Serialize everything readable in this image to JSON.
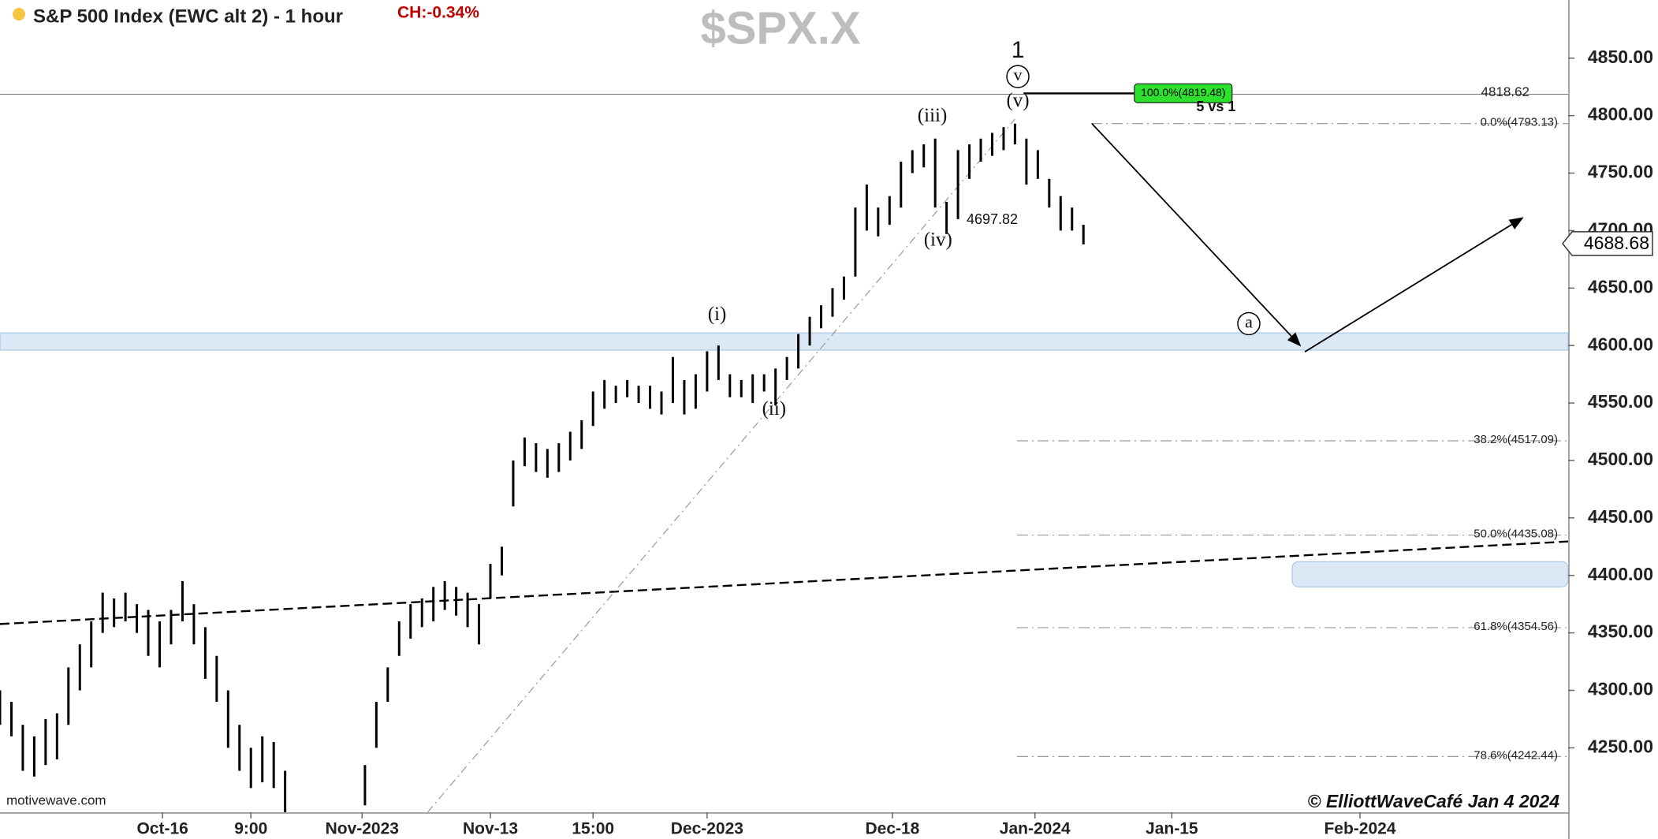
{
  "chart_data": {
    "type": "ohlc",
    "title": "S&P 500 Index (EWC alt 2) - 1 hour",
    "change": "CH:-0.34%",
    "symbol": "$SPX.X",
    "source": "motivewave.com",
    "copyright": "© ElliottWaveCafé Jan 4 2024",
    "last_price": {
      "value": 4688.68,
      "label": "4688.68"
    },
    "color": "#000000",
    "xlim": [
      0,
      550
    ],
    "ylim": [
      4194,
      4900.6
    ],
    "xticks": [
      {
        "value": 57,
        "label": "Oct-16"
      },
      {
        "value": 88,
        "label": "9:00"
      },
      {
        "value": 127,
        "label": "Nov-2023"
      },
      {
        "value": 172,
        "label": "Nov-13"
      },
      {
        "value": 208,
        "label": "15:00"
      },
      {
        "value": 248,
        "label": "Dec-2023"
      },
      {
        "value": 313,
        "label": "Dec-18"
      },
      {
        "value": 363,
        "label": "Jan-2024"
      },
      {
        "value": 411,
        "label": "Jan-15"
      },
      {
        "value": 477,
        "label": "Feb-2024"
      }
    ],
    "yticks": [
      {
        "value": 4250,
        "label": "4250.00"
      },
      {
        "value": 4300,
        "label": "4300.00"
      },
      {
        "value": 4350,
        "label": "4350.00"
      },
      {
        "value": 4400,
        "label": "4400.00"
      },
      {
        "value": 4450,
        "label": "4450.00"
      },
      {
        "value": 4500,
        "label": "4500.00"
      },
      {
        "value": 4550,
        "label": "4550.00"
      },
      {
        "value": 4600,
        "label": "4600.00"
      },
      {
        "value": 4650,
        "label": "4650.00"
      },
      {
        "value": 4700,
        "label": "4700.00"
      },
      {
        "value": 4750,
        "label": "4750.00"
      },
      {
        "value": 4800,
        "label": "4800.00"
      },
      {
        "value": 4850,
        "label": "4850.00"
      }
    ],
    "x": [
      0,
      4,
      8,
      12,
      16,
      20,
      24,
      28,
      32,
      36,
      40,
      44,
      48,
      52,
      56,
      60,
      64,
      68,
      72,
      76,
      80,
      84,
      88,
      92,
      96,
      100,
      128,
      132,
      136,
      140,
      144,
      148,
      152,
      156,
      160,
      164,
      168,
      172,
      176,
      180,
      184,
      188,
      192,
      196,
      200,
      204,
      208,
      212,
      216,
      220,
      224,
      228,
      232,
      236,
      240,
      244,
      248,
      252,
      256,
      260,
      264,
      268,
      272,
      276,
      280,
      284,
      288,
      292,
      296,
      300,
      304,
      308,
      312,
      316,
      320,
      324,
      328,
      332,
      336,
      340,
      344,
      348,
      352,
      356,
      360,
      364,
      368,
      372,
      376,
      380
    ],
    "high": [
      4300,
      4290,
      4270,
      4260,
      4275,
      4280,
      4320,
      4340,
      4360,
      4385,
      4380,
      4385,
      4375,
      4370,
      4360,
      4370,
      4395,
      4375,
      4355,
      4330,
      4300,
      4270,
      4250,
      4260,
      4255,
      4230,
      4235,
      4290,
      4320,
      4360,
      4375,
      4380,
      4390,
      4395,
      4390,
      4385,
      4375,
      4410,
      4425,
      4500,
      4520,
      4515,
      4510,
      4515,
      4525,
      4535,
      4560,
      4570,
      4565,
      4570,
      4565,
      4565,
      4560,
      4590,
      4570,
      4575,
      4595,
      4600,
      4575,
      4570,
      4575,
      4575,
      4580,
      4590,
      4610,
      4625,
      4635,
      4650,
      4660,
      4720,
      4740,
      4720,
      4730,
      4760,
      4770,
      4775,
      4780,
      4725,
      4770,
      4775,
      4780,
      4785,
      4790,
      4793,
      4780,
      4770,
      4745,
      4730,
      4720,
      4705
    ],
    "low": [
      4270,
      4260,
      4230,
      4225,
      4235,
      4240,
      4270,
      4300,
      4320,
      4350,
      4355,
      4360,
      4350,
      4330,
      4320,
      4340,
      4360,
      4340,
      4310,
      4290,
      4250,
      4230,
      4215,
      4220,
      4215,
      4194,
      4200,
      4250,
      4290,
      4330,
      4345,
      4355,
      4360,
      4370,
      4365,
      4355,
      4340,
      4380,
      4400,
      4460,
      4495,
      4490,
      4485,
      4490,
      4500,
      4510,
      4530,
      4545,
      4550,
      4555,
      4550,
      4545,
      4540,
      4550,
      4540,
      4545,
      4560,
      4570,
      4555,
      4555,
      4550,
      4560,
      4548,
      4570,
      4580,
      4600,
      4615,
      4625,
      4640,
      4660,
      4700,
      4695,
      4705,
      4720,
      4750,
      4755,
      4720,
      4697,
      4710,
      4745,
      4760,
      4765,
      4770,
      4775,
      4740,
      4745,
      4720,
      4700,
      4700,
      4688
    ],
    "resistance": {
      "value": 4818.62,
      "label": "4818.62"
    },
    "target": {
      "value": 4819.48,
      "label": "100.0%(4819.48)"
    },
    "fib_levels": [
      {
        "value": 4793.13,
        "label": "0.0%(4793.13)"
      },
      {
        "value": 4517.09,
        "label": "38.2%(4517.09)"
      },
      {
        "value": 4435.08,
        "label": "50.0%(4435.08)"
      },
      {
        "value": 4354.56,
        "label": "61.8%(4354.56)"
      },
      {
        "value": 4242.44,
        "label": "78.6%(4242.44)"
      }
    ],
    "zones": [
      {
        "from": 4596,
        "to": 4611
      },
      {
        "from": 4390,
        "to": 4412
      }
    ],
    "trendlines": [
      {
        "x": [
          0,
          550
        ],
        "y": [
          4357.7,
          4429.5
        ],
        "style": "dashed"
      },
      {
        "x": [
          150,
          356
        ],
        "y": [
          4194,
          4797
        ],
        "style": "dashdot"
      }
    ],
    "projection": {
      "x": [
        383,
        456,
        534
      ],
      "y": [
        4793,
        4600,
        4711
      ]
    },
    "annotations": [
      {
        "text": "1",
        "x": 357,
        "y": 4856,
        "circle": false
      },
      {
        "text": "v",
        "x": 357,
        "y": 4834,
        "circle": true
      },
      {
        "text": "(v)",
        "x": 357,
        "y": 4812,
        "circle": false
      },
      {
        "text": "(iii)",
        "x": 327,
        "y": 4799,
        "circle": false
      },
      {
        "text": "(iv)",
        "x": 329,
        "y": 4691,
        "circle": false
      },
      {
        "text": "(i)",
        "x": 251.5,
        "y": 4626,
        "circle": false
      },
      {
        "text": "(ii)",
        "x": 271.5,
        "y": 4543.6,
        "circle": false
      },
      {
        "text": "a",
        "x": 438,
        "y": 4619,
        "circle": true
      },
      {
        "text": "4697.82",
        "x": 348,
        "y": 4709,
        "circle": false
      },
      {
        "text": "5 vs 1",
        "x": 426.5,
        "y": 4807,
        "circle": false
      }
    ]
  }
}
